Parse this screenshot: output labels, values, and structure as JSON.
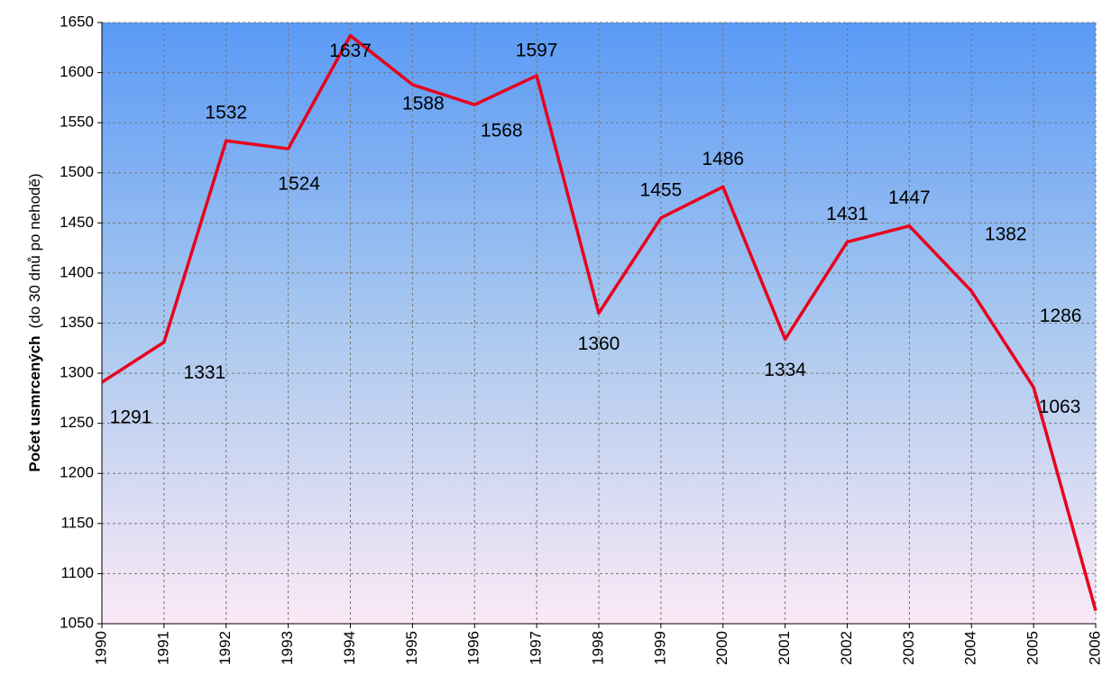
{
  "chart_data": {
    "type": "line",
    "y_label": "Počet usmrcených",
    "y_label_note": "(do 30 dnů po nehodě)",
    "x": [
      1990,
      1991,
      1992,
      1993,
      1994,
      1995,
      1996,
      1997,
      1998,
      1999,
      2000,
      2001,
      2002,
      2003,
      2004,
      2005,
      2006
    ],
    "values": [
      1291,
      1331,
      1532,
      1524,
      1637,
      1588,
      1568,
      1597,
      1360,
      1455,
      1486,
      1334,
      1431,
      1447,
      1382,
      1286,
      1063
    ],
    "color": "#e8001c",
    "xlim": [
      1990,
      2006
    ],
    "xticks": [
      1990,
      1991,
      1992,
      1993,
      1994,
      1995,
      1996,
      1997,
      1998,
      1999,
      2000,
      2001,
      2002,
      2003,
      2004,
      2005,
      2006
    ],
    "ylim": [
      1050,
      1650
    ],
    "yticks": [
      1050,
      1100,
      1150,
      1200,
      1250,
      1300,
      1350,
      1400,
      1450,
      1500,
      1550,
      1600,
      1650
    ],
    "grid": true
  }
}
